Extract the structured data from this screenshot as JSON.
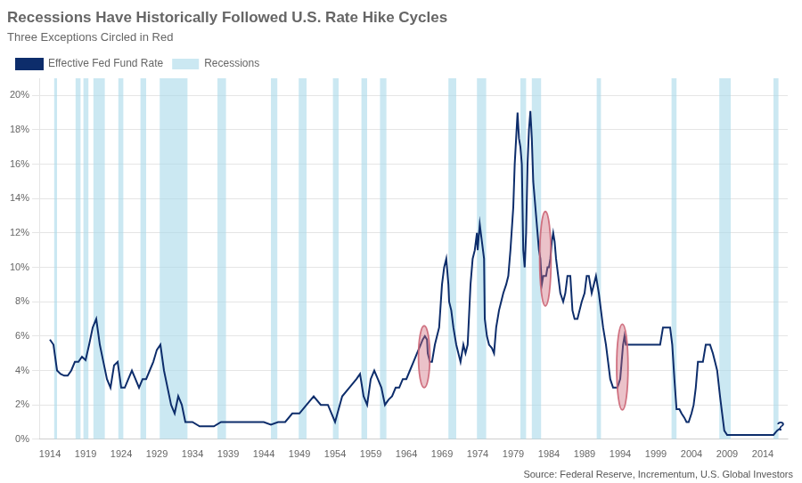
{
  "chart_data": {
    "type": "line",
    "title": "Recessions Have Historically Followed U.S. Rate Hike Cycles",
    "subtitle": "Three Exceptions Circled in Red",
    "source": "Source: Federal Reserve, Incrementum, U.S. Global Investors",
    "legend": "upper left",
    "grid": "y",
    "xlim": [
      1912.5,
      2017.5
    ],
    "ylim": [
      0,
      21.0
    ],
    "xticks": [
      1914,
      1919,
      1924,
      1929,
      1934,
      1939,
      1944,
      1949,
      1954,
      1959,
      1964,
      1969,
      1974,
      1979,
      1984,
      1989,
      1994,
      1999,
      2004,
      2009,
      2014
    ],
    "yticks": [
      {
        "value": 0,
        "label": "0%"
      },
      {
        "value": 2,
        "label": "2%"
      },
      {
        "value": 4,
        "label": "4%"
      },
      {
        "value": 6,
        "label": "6%"
      },
      {
        "value": 8,
        "label": "8%"
      },
      {
        "value": 10,
        "label": "10%"
      },
      {
        "value": 12,
        "label": "12%"
      },
      {
        "value": 14,
        "label": "14%"
      },
      {
        "value": 16,
        "label": "16%"
      },
      {
        "value": 18,
        "label": "18%"
      },
      {
        "value": 20,
        "label": "20%"
      }
    ],
    "x": [
      1914.0,
      1914.5,
      1915.0,
      1915.5,
      1916.0,
      1916.5,
      1917.0,
      1917.5,
      1918.0,
      1918.5,
      1919.0,
      1919.5,
      1920.0,
      1920.5,
      1921.0,
      1921.5,
      1922.0,
      1922.5,
      1923.0,
      1923.5,
      1924.0,
      1924.5,
      1925.0,
      1925.5,
      1926.0,
      1926.5,
      1927.0,
      1927.5,
      1928.0,
      1928.5,
      1929.0,
      1929.5,
      1930.0,
      1930.5,
      1931.0,
      1931.5,
      1932.0,
      1932.5,
      1933.0,
      1933.5,
      1934.0,
      1935.0,
      1936.0,
      1937.0,
      1938.0,
      1939.0,
      1940.0,
      1941.0,
      1942.0,
      1943.0,
      1944.0,
      1945.0,
      1946.0,
      1947.0,
      1948.0,
      1949.0,
      1950.0,
      1951.0,
      1952.0,
      1953.0,
      1954.0,
      1955.0,
      1956.0,
      1957.0,
      1957.5,
      1958.0,
      1958.5,
      1959.0,
      1959.5,
      1960.0,
      1960.5,
      1961.0,
      1961.5,
      1962.0,
      1962.5,
      1963.0,
      1963.5,
      1964.0,
      1964.5,
      1965.0,
      1965.5,
      1966.0,
      1966.3,
      1966.6,
      1966.9,
      1967.0,
      1967.3,
      1967.6,
      1968.0,
      1968.3,
      1968.6,
      1969.0,
      1969.3,
      1969.6,
      1969.9,
      1970.0,
      1970.3,
      1970.6,
      1971.0,
      1971.3,
      1971.6,
      1972.0,
      1972.3,
      1972.6,
      1973.0,
      1973.3,
      1973.6,
      1973.9,
      1974.0,
      1974.3,
      1974.6,
      1974.9,
      1975.0,
      1975.3,
      1975.6,
      1976.0,
      1976.3,
      1976.6,
      1977.0,
      1977.3,
      1977.6,
      1978.0,
      1978.3,
      1978.6,
      1979.0,
      1979.2,
      1979.4,
      1979.6,
      1979.8,
      1980.0,
      1980.2,
      1980.4,
      1980.6,
      1980.8,
      1981.0,
      1981.2,
      1981.4,
      1981.6,
      1981.8,
      1982.0,
      1982.2,
      1982.4,
      1982.6,
      1982.8,
      1983.0,
      1983.2,
      1983.4,
      1983.6,
      1983.8,
      1984.0,
      1984.2,
      1984.4,
      1984.6,
      1984.8,
      1985.0,
      1985.3,
      1985.6,
      1986.0,
      1986.3,
      1986.6,
      1987.0,
      1987.3,
      1987.6,
      1988.0,
      1988.3,
      1988.6,
      1989.0,
      1989.3,
      1989.6,
      1990.0,
      1990.3,
      1990.6,
      1991.0,
      1991.3,
      1991.6,
      1992.0,
      1992.3,
      1992.6,
      1993.0,
      1993.3,
      1993.6,
      1994.0,
      1994.2,
      1994.4,
      1994.6,
      1994.8,
      1995.0,
      1995.3,
      1995.6,
      1996.0,
      1996.3,
      1996.6,
      1997.0,
      1997.3,
      1997.6,
      1998.0,
      1998.3,
      1998.6,
      1999.0,
      1999.3,
      1999.6,
      2000.0,
      2000.3,
      2000.6,
      2001.0,
      2001.3,
      2001.6,
      2001.9,
      2002.0,
      2002.3,
      2002.6,
      2003.0,
      2003.3,
      2003.6,
      2004.0,
      2004.3,
      2004.6,
      2004.9,
      2005.0,
      2005.3,
      2005.6,
      2006.0,
      2006.3,
      2006.6,
      2007.0,
      2007.3,
      2007.6,
      2008.0,
      2008.3,
      2008.6,
      2009.0,
      2009.3,
      2009.6,
      2010.0,
      2010.5,
      2011.0,
      2011.5,
      2012.0,
      2012.5,
      2013.0,
      2013.5,
      2014.0,
      2014.5,
      2015.0,
      2015.5,
      2016.0,
      2016.5
    ],
    "series": [
      {
        "name": "Effective Fed Fund Rate",
        "color": "#0d2d6b",
        "values": [
          5.8,
          5.5,
          4.0,
          3.8,
          3.7,
          3.7,
          4.0,
          4.5,
          4.5,
          4.8,
          4.6,
          5.5,
          6.5,
          7.0,
          5.5,
          4.5,
          3.5,
          3.0,
          4.3,
          4.5,
          3.0,
          3.0,
          3.5,
          4.0,
          3.5,
          3.0,
          3.5,
          3.5,
          4.0,
          4.5,
          5.2,
          5.5,
          4.0,
          3.0,
          2.0,
          1.5,
          2.5,
          2.0,
          1.0,
          1.0,
          1.0,
          0.75,
          0.75,
          0.75,
          1.0,
          1.0,
          1.0,
          1.0,
          1.0,
          1.0,
          1.0,
          0.85,
          1.0,
          1.0,
          1.5,
          1.5,
          2.0,
          2.5,
          2.0,
          2.0,
          1.0,
          2.5,
          3.0,
          3.5,
          3.8,
          2.5,
          2.0,
          3.5,
          4.0,
          3.5,
          3.0,
          2.0,
          2.3,
          2.5,
          3.0,
          3.0,
          3.5,
          3.5,
          4.0,
          4.5,
          5.0,
          5.5,
          5.8,
          6.0,
          5.8,
          5.0,
          4.5,
          4.5,
          5.5,
          6.0,
          6.5,
          9.0,
          10.0,
          10.5,
          9.0,
          8.0,
          7.5,
          6.5,
          5.5,
          5.0,
          4.5,
          5.5,
          5.0,
          5.5,
          9.0,
          10.5,
          11.0,
          12.0,
          11.0,
          12.5,
          11.5,
          10.5,
          7.0,
          6.0,
          5.5,
          5.3,
          5.0,
          6.5,
          7.5,
          8.0,
          8.5,
          9.0,
          9.5,
          11.0,
          13.5,
          16.0,
          17.5,
          19.0,
          17.5,
          17.0,
          16.0,
          11.0,
          10.0,
          12.0,
          16.0,
          18.0,
          19.1,
          17.5,
          15.0,
          14.0,
          13.0,
          12.0,
          11.0,
          10.5,
          9.0,
          9.5,
          9.5,
          9.5,
          10.0,
          10.0,
          10.5,
          11.5,
          12.0,
          11.5,
          10.5,
          9.5,
          8.5,
          8.0,
          8.5,
          9.5,
          9.5,
          7.5,
          7.0,
          7.0,
          7.5,
          8.0,
          8.5,
          9.5,
          9.5,
          8.5,
          9.0,
          9.5,
          8.5,
          7.5,
          6.5,
          5.5,
          4.5,
          3.5,
          3.0,
          3.0,
          3.0,
          3.5,
          4.5,
          5.5,
          6.0,
          5.5,
          5.5,
          5.5,
          5.5,
          5.5,
          5.5,
          5.5,
          5.5,
          5.5,
          5.5,
          5.5,
          5.5,
          5.5,
          5.5,
          5.5,
          5.5,
          6.5,
          6.5,
          6.5,
          6.5,
          5.5,
          3.5,
          1.75,
          1.75,
          1.75,
          1.5,
          1.25,
          1.0,
          1.0,
          1.5,
          2.0,
          3.0,
          4.5,
          4.5,
          4.5,
          4.5,
          5.5,
          5.5,
          5.5,
          5.0,
          4.5,
          4.0,
          2.5,
          1.5,
          0.5,
          0.25,
          0.25,
          0.25,
          0.25,
          0.25,
          0.25,
          0.25,
          0.25,
          0.25,
          0.25,
          0.25,
          0.25,
          0.25,
          0.25,
          0.25,
          0.5,
          0.65
        ]
      }
    ],
    "recessions": {
      "name": "Recessions",
      "color": "#a8d8ea",
      "spans": [
        [
          1914.6,
          1915.0
        ],
        [
          1917.6,
          1918.3
        ],
        [
          1918.7,
          1919.4
        ],
        [
          1920.1,
          1921.7
        ],
        [
          1923.6,
          1924.3
        ],
        [
          1926.7,
          1927.5
        ],
        [
          1929.4,
          1933.3
        ],
        [
          1937.5,
          1938.7
        ],
        [
          1945.0,
          1945.9
        ],
        [
          1948.9,
          1950.0
        ],
        [
          1953.7,
          1954.5
        ],
        [
          1957.7,
          1958.5
        ],
        [
          1960.3,
          1961.2
        ],
        [
          1969.9,
          1971.0
        ],
        [
          1973.9,
          1975.2
        ],
        [
          1980.0,
          1980.8
        ],
        [
          1981.6,
          1982.9
        ],
        [
          1990.7,
          1991.3
        ],
        [
          2001.2,
          2001.9
        ],
        [
          2007.9,
          2009.5
        ],
        [
          2015.5,
          2016.2
        ]
      ]
    },
    "ellipses": {
      "color": "#cc6677",
      "items": [
        {
          "x": 1966.5,
          "y": 4.8,
          "width": 1.6,
          "height": 3.6
        },
        {
          "x": 1983.5,
          "y": 10.5,
          "width": 1.6,
          "height": 5.5
        },
        {
          "x": 1994.3,
          "y": 4.2,
          "width": 1.6,
          "height": 5.0
        }
      ]
    },
    "annotations": [
      {
        "text": "?",
        "x": 2016.5,
        "y": 0.35
      }
    ]
  }
}
